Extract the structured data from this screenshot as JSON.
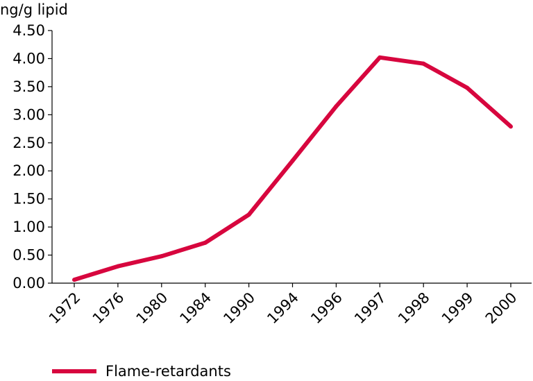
{
  "chart_data": {
    "type": "line",
    "ylabel": "ng/g lipid",
    "categories": [
      "1972",
      "1976",
      "1980",
      "1984",
      "1990",
      "1994",
      "1996",
      "1997",
      "1998",
      "1999",
      "2000"
    ],
    "y_ticks": [
      "0.00",
      "0.50",
      "1.00",
      "1.50",
      "2.00",
      "2.50",
      "3.00",
      "3.50",
      "4.00",
      "4.50"
    ],
    "ylim": [
      0,
      4.5
    ],
    "grid": false,
    "legend_position": "bottom-left",
    "series": [
      {
        "name": "Flame-retardants",
        "color": "#d7063e",
        "values": [
          0.06,
          0.3,
          0.48,
          0.72,
          1.22,
          2.18,
          3.15,
          4.02,
          3.91,
          3.48,
          2.79
        ]
      }
    ]
  }
}
